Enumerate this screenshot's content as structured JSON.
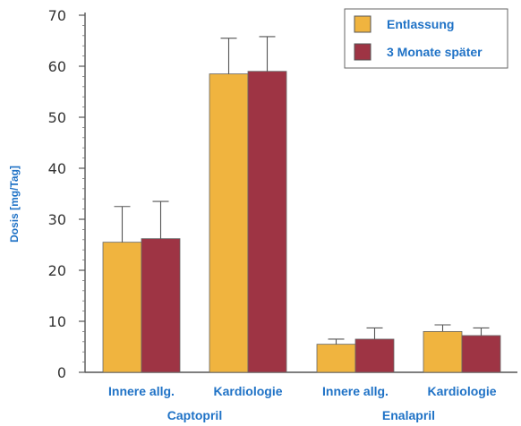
{
  "chart_data": {
    "type": "bar",
    "ylabel": "Dosis [mg/Tag]",
    "ylim": [
      0,
      70
    ],
    "yticks": [
      0,
      10,
      20,
      30,
      40,
      50,
      60,
      70
    ],
    "categories": [
      "Innere allg.",
      "Kardiologie",
      "Innere allg.",
      "Kardiologie"
    ],
    "groups": [
      {
        "label": "Captopril",
        "categories": [
          0,
          1
        ]
      },
      {
        "label": "Enalapril",
        "categories": [
          2,
          3
        ]
      }
    ],
    "series": [
      {
        "name": "Entlassung",
        "color": "#f0b43f",
        "values": [
          25.5,
          58.5,
          5.5,
          8.0
        ],
        "error": [
          7.0,
          7.0,
          1.0,
          1.3
        ]
      },
      {
        "name": "3 Monate später",
        "color": "#9e3444",
        "values": [
          26.2,
          59.0,
          6.5,
          7.2
        ],
        "error": [
          7.3,
          6.8,
          2.2,
          1.5
        ]
      }
    ],
    "legend_position": "top-right",
    "grid": false
  }
}
